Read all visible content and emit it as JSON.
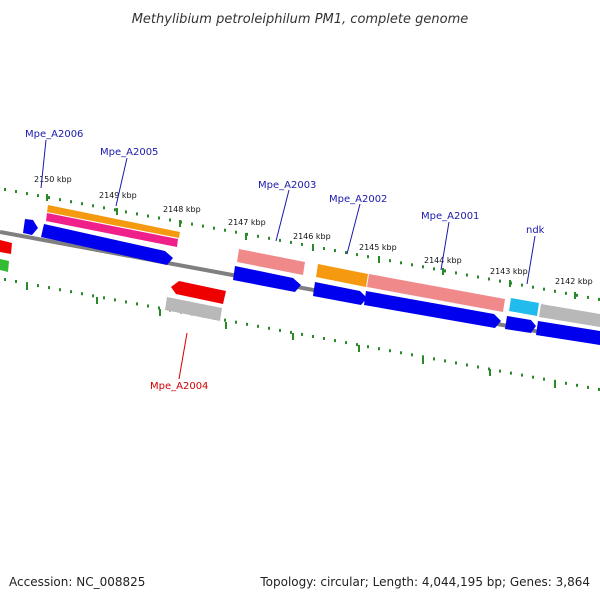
{
  "title": "Methylibium petroleiphilum PM1, complete genome",
  "footer": {
    "accession": "Accession: NC_008825",
    "summary": "Topology: circular; Length: 4,044,195 bp; Genes: 3,864"
  },
  "colors": {
    "backbone": "#7f7f7f",
    "tick": "#2a8a2a",
    "cds": "#0000ee",
    "label_forward": "#1a1aaa",
    "label_reverse": "#d00000",
    "orange": "#f59a10",
    "magenta": "#f0208a",
    "salmon": "#f08a8a",
    "red": "#ee0000",
    "gray": "#b8b8b8",
    "cyan": "#22bbee",
    "green": "#33bb33"
  },
  "ticks": [
    {
      "label": "2150 kbp"
    },
    {
      "label": "2149 kbp"
    },
    {
      "label": "2148 kbp"
    },
    {
      "label": "2147 kbp"
    },
    {
      "label": "2146 kbp"
    },
    {
      "label": "2145 kbp"
    },
    {
      "label": "2144 kbp"
    },
    {
      "label": "2143 kbp"
    },
    {
      "label": "2142 kbp"
    }
  ],
  "gene_labels": [
    {
      "text": "Mpe_A2006",
      "strand": "forward"
    },
    {
      "text": "Mpe_A2005",
      "strand": "forward"
    },
    {
      "text": "Mpe_A2003",
      "strand": "forward"
    },
    {
      "text": "Mpe_A2002",
      "strand": "forward"
    },
    {
      "text": "Mpe_A2001",
      "strand": "forward"
    },
    {
      "text": "ndk",
      "strand": "forward"
    },
    {
      "text": "Mpe_A2004",
      "strand": "reverse"
    }
  ]
}
